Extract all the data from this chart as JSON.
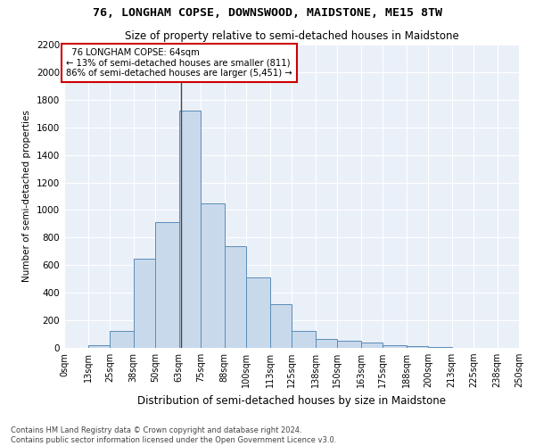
{
  "title1": "76, LONGHAM COPSE, DOWNSWOOD, MAIDSTONE, ME15 8TW",
  "title2": "Size of property relative to semi-detached houses in Maidstone",
  "xlabel": "Distribution of semi-detached houses by size in Maidstone",
  "ylabel": "Number of semi-detached properties",
  "footnote": "Contains HM Land Registry data © Crown copyright and database right 2024.\nContains public sector information licensed under the Open Government Licence v3.0.",
  "bar_color": "#c9d9ec",
  "bar_edge_color": "#5b8db8",
  "bg_color": "#eaf0f8",
  "annotation_box_color": "#cc0000",
  "property_size": 64,
  "property_label": "76 LONGHAM COPSE: 64sqm",
  "pct_smaller": 13,
  "n_smaller": 811,
  "pct_larger": 86,
  "n_larger": 5451,
  "bins": [
    0,
    13,
    25,
    38,
    50,
    63,
    75,
    88,
    100,
    113,
    125,
    138,
    150,
    163,
    175,
    188,
    200,
    213,
    225,
    238,
    250
  ],
  "counts": [
    0,
    20,
    120,
    650,
    910,
    1720,
    1050,
    740,
    510,
    320,
    125,
    65,
    50,
    40,
    20,
    10,
    5,
    0,
    0,
    0
  ],
  "ylim": [
    0,
    2200
  ],
  "yticks": [
    0,
    200,
    400,
    600,
    800,
    1000,
    1200,
    1400,
    1600,
    1800,
    2000,
    2200
  ],
  "tick_labels": [
    "0sqm",
    "13sqm",
    "25sqm",
    "38sqm",
    "50sqm",
    "63sqm",
    "75sqm",
    "88sqm",
    "100sqm",
    "113sqm",
    "125sqm",
    "138sqm",
    "150sqm",
    "163sqm",
    "175sqm",
    "188sqm",
    "200sqm",
    "213sqm",
    "225sqm",
    "238sqm",
    "250sqm"
  ]
}
